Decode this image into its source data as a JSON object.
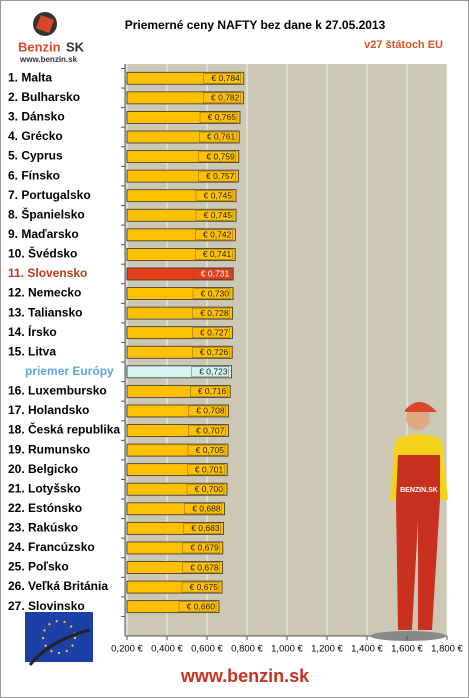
{
  "chart_data": {
    "type": "hbar",
    "title": "Priemerné ceny NAFTY bez dane k 27.05.2013",
    "subtitle": "v27 štátoch EU",
    "logo": {
      "name": "Benzin",
      "suffix": "SK",
      "url": "www.benzin.sk"
    },
    "mascot_text": "BENZIN.SK",
    "footer": "www.benzin.sk",
    "categories": [
      "1. Malta",
      "2. Bulharsko",
      "3. Dánsko",
      "4. Grécko",
      "5. Cyprus",
      "6. Fínsko",
      "7. Portugalsko",
      "8. Španielsko",
      "9. Maďarsko",
      "10. Švédsko",
      "11. Slovensko",
      "12. Nemecko",
      "13. Taliansko",
      "14. Írsko",
      "15. Litva",
      "priemer Európy",
      "16. Luxembursko",
      "17. Holandsko",
      "18. Česká republika",
      "19. Rumunsko",
      "20. Belgicko",
      "21. Lotyšsko",
      "22. Estónsko",
      "23. Rakúsko",
      "24. Francúzsko",
      "25. Poľsko",
      "26. Veľká Británia",
      "27. Slovinsko"
    ],
    "values": [
      0.784,
      0.782,
      0.765,
      0.761,
      0.759,
      0.757,
      0.745,
      0.745,
      0.742,
      0.741,
      0.731,
      0.73,
      0.728,
      0.727,
      0.726,
      0.723,
      0.716,
      0.708,
      0.707,
      0.705,
      0.701,
      0.7,
      0.688,
      0.683,
      0.679,
      0.678,
      0.675,
      0.66
    ],
    "value_labels": [
      "€ 0,784",
      "€ 0,782",
      "€ 0,765",
      "€ 0,761",
      "€ 0,759",
      "€ 0,757",
      "€ 0,745",
      "€ 0,745",
      "€ 0,742",
      "€ 0,741",
      "€ 0,731",
      "€ 0,730",
      "€ 0,728",
      "€ 0,727",
      "€ 0,726",
      "€ 0,723",
      "€ 0,716",
      "€ 0,708",
      "€ 0,707",
      "€ 0,705",
      "€ 0,701",
      "€ 0,700",
      "€ 0,688",
      "€ 0,683",
      "€ 0,679",
      "€ 0,678",
      "€ 0,675",
      "€ 0,660"
    ],
    "color": "#ffc000",
    "bar_colors": [
      "#ffc000",
      "#ffc000",
      "#ffc000",
      "#ffc000",
      "#ffc000",
      "#ffc000",
      "#ffc000",
      "#ffc000",
      "#ffc000",
      "#ffc000",
      "#e8401c",
      "#ffc000",
      "#ffc000",
      "#ffc000",
      "#ffc000",
      "#d6f5ee",
      "#ffc000",
      "#ffc000",
      "#ffc000",
      "#ffc000",
      "#ffc000",
      "#ffc000",
      "#ffc000",
      "#ffc000",
      "#ffc000",
      "#ffc000",
      "#ffc000",
      "#ffc000"
    ],
    "label_colors": [
      "#000",
      "#000",
      "#000",
      "#000",
      "#000",
      "#000",
      "#000",
      "#000",
      "#000",
      "#000",
      "#c0391b",
      "#000",
      "#000",
      "#000",
      "#000",
      "#5fa8d8",
      "#000",
      "#000",
      "#000",
      "#000",
      "#000",
      "#000",
      "#000",
      "#000",
      "#000",
      "#000",
      "#000",
      "#000"
    ],
    "xlim": [
      0.2,
      1.8
    ],
    "xticks": [
      {
        "value": 0.2,
        "label": "0,200 €"
      },
      {
        "value": 0.4,
        "label": "0,400 €"
      },
      {
        "value": 0.6,
        "label": "0,600 €"
      },
      {
        "value": 0.8,
        "label": "0,800 €"
      },
      {
        "value": 1.0,
        "label": "1,000 €"
      },
      {
        "value": 1.2,
        "label": "1,200 €"
      },
      {
        "value": 1.4,
        "label": "1,400 €"
      },
      {
        "value": 1.6,
        "label": "1,600 €"
      },
      {
        "value": 1.8,
        "label": "1,800 €"
      }
    ],
    "grid": true
  }
}
